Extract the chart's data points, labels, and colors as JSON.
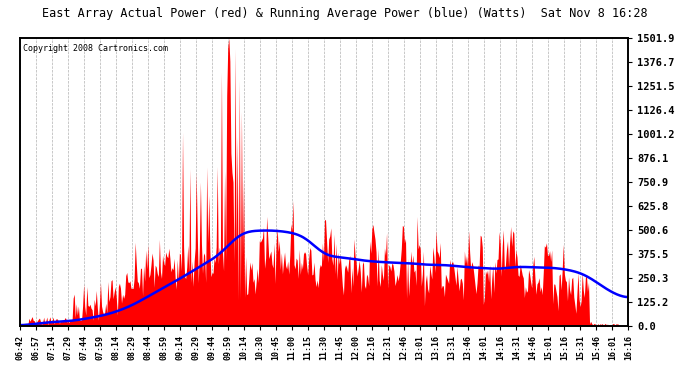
{
  "title": "East Array Actual Power (red) & Running Average Power (blue) (Watts)  Sat Nov 8 16:28",
  "copyright": "Copyright 2008 Cartronics.com",
  "ylabel_right_ticks": [
    0.0,
    125.2,
    250.3,
    375.5,
    500.6,
    625.8,
    750.9,
    876.1,
    1001.2,
    1126.4,
    1251.5,
    1376.7,
    1501.9
  ],
  "ymax": 1501.9,
  "ymin": 0.0,
  "actual_color": "#FF0000",
  "avg_color": "#0000FF",
  "bg_color": "#FFFFFF",
  "grid_color": "#AAAAAA",
  "x_labels": [
    "06:42",
    "06:57",
    "07:14",
    "07:29",
    "07:44",
    "07:59",
    "08:14",
    "08:29",
    "08:44",
    "08:59",
    "09:14",
    "09:29",
    "09:44",
    "09:59",
    "10:14",
    "10:30",
    "10:45",
    "11:00",
    "11:15",
    "11:30",
    "11:45",
    "12:00",
    "12:16",
    "12:31",
    "12:46",
    "13:01",
    "13:16",
    "13:31",
    "13:46",
    "14:01",
    "14:16",
    "14:31",
    "14:46",
    "15:01",
    "15:16",
    "15:31",
    "15:46",
    "16:01",
    "16:16"
  ]
}
